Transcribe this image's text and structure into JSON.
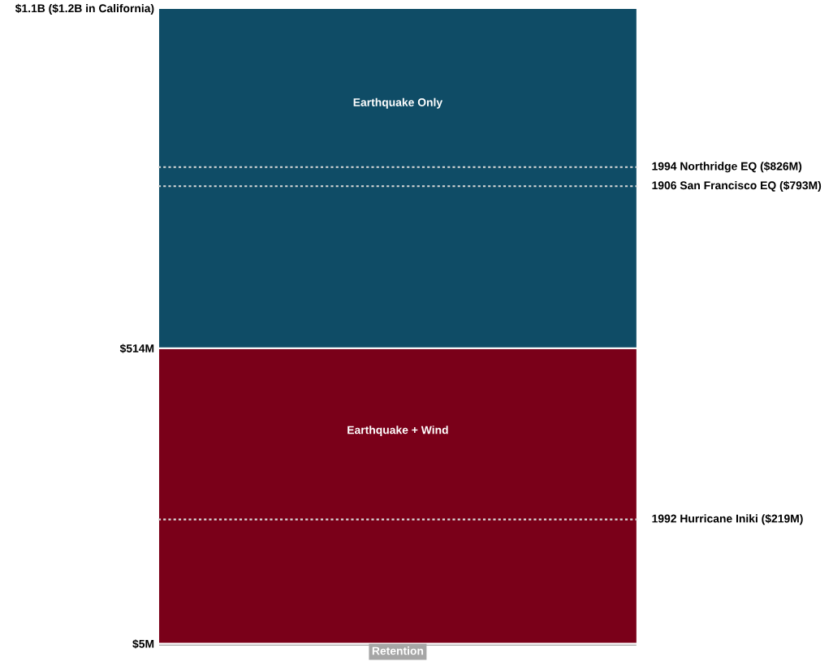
{
  "chart_data": {
    "type": "bar",
    "stacked": true,
    "categories": [
      null
    ],
    "series": [
      {
        "name": "Retention",
        "color": "#a6a6a6",
        "values": [
          5
        ]
      },
      {
        "name": "Earthquake + Wind",
        "color": "#7a0019",
        "values": [
          509
        ]
      },
      {
        "name": "Earthquake Only",
        "color": "#0f4c66",
        "values": [
          586
        ]
      }
    ],
    "ylim": [
      0,
      1100
    ],
    "yticks": [
      {
        "value": 5,
        "label": "$5M"
      },
      {
        "value": 514,
        "label": "$514M"
      },
      {
        "value": 1100,
        "label": "$1.1B ($1.2B in California)"
      }
    ],
    "ref_lines": [
      {
        "axis": "y",
        "value": 826,
        "label": "1994 Northridge EQ ($826M)",
        "color": "#d9d9d9",
        "line_style": "dotted"
      },
      {
        "axis": "y",
        "value": 793,
        "label": "1906 San Francisco EQ ($793M)",
        "color": "#d9d9d9",
        "line_style": "dotted"
      },
      {
        "axis": "y",
        "value": 219,
        "label": "1992 Hurricane Iniki ($219M)",
        "color": "#d9d9d9",
        "line_style": "dotted"
      }
    ],
    "grid": false,
    "legend": false
  }
}
